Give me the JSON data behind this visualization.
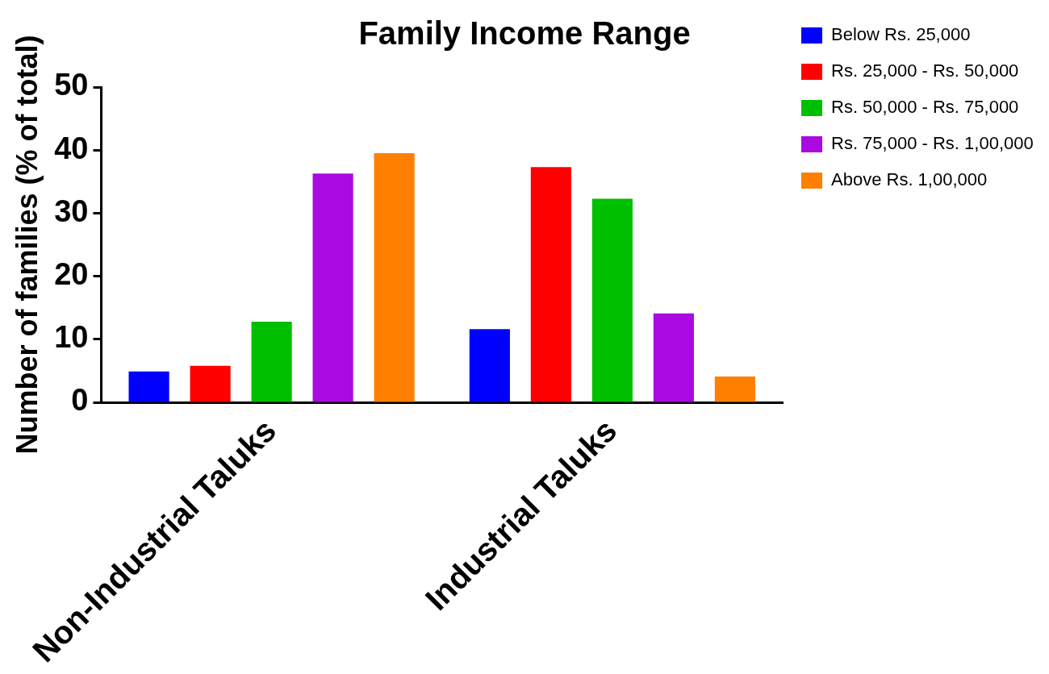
{
  "chart_data": {
    "type": "bar",
    "title": "Family Income Range",
    "ylabel": "Number of families (% of total)",
    "categories": [
      "Non-Industrial Taluks",
      "Industrial Taluks"
    ],
    "series": [
      {
        "name": "Below Rs. 25,000",
        "color": "#0000ff",
        "values": [
          4.9,
          11.6
        ]
      },
      {
        "name": "Rs. 25,000 - Rs. 50,000",
        "color": "#ff0000",
        "values": [
          5.8,
          37.3
        ]
      },
      {
        "name": "Rs. 50,000 - Rs. 75,000",
        "color": "#00bf00",
        "values": [
          12.8,
          32.3
        ]
      },
      {
        "name": "Rs. 75,000 - Rs. 1,00,000",
        "color": "#aa09e2",
        "values": [
          36.3,
          14.1
        ]
      },
      {
        "name": "Above Rs. 1,00,000",
        "color": "#ff8000",
        "values": [
          39.5,
          4.1
        ]
      }
    ],
    "ylim": [
      0,
      50
    ],
    "yticks": [
      0,
      10,
      20,
      30,
      40,
      50
    ],
    "grid": false,
    "legend": "top right"
  }
}
